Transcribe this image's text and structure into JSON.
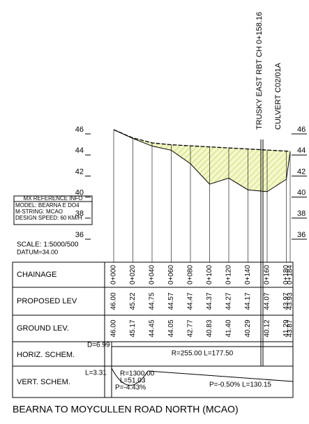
{
  "header": {
    "station_label": "TRUSKY EAST RBT CH 0+158.16",
    "culvert_label": "CULVERT C02/01A"
  },
  "axis": {
    "left": [
      "46",
      "44",
      "42",
      "40",
      "38",
      "36"
    ],
    "right": [
      "46",
      "44",
      "42",
      "40",
      "38",
      "36"
    ]
  },
  "reference": {
    "title": "MX REFERENCE INFO",
    "lines": [
      "MODEL: BEARNA E DO4",
      "M-STRING: MCAO",
      "DESIGN SPEED: 60 KM/H"
    ]
  },
  "scale": "SCALE: 1:5000/500",
  "datum": "DATUM=34.00",
  "table": {
    "row_labels": [
      "CHAINAGE",
      "PROPOSED LEV",
      "GROUND LEV.",
      "HORIZ. SCHEM.",
      "VERT. SCHEM."
    ],
    "chainage": [
      "0+000",
      "0+020",
      "0+040",
      "0+060",
      "0+080",
      "0+100",
      "0+120",
      "0+140",
      "0+160",
      "0+180",
      "0+184"
    ],
    "proposed": [
      "46.00",
      "45.22",
      "44.75",
      "44.57",
      "44.47",
      "44.37",
      "44.27",
      "44.17",
      "44.07",
      "43.97",
      "43.93"
    ],
    "ground": [
      "46.00",
      "45.17",
      "44.45",
      "44.05",
      "42.77",
      "40.83",
      "41.40",
      "40.29",
      "40.12",
      "41.29",
      "43.87"
    ]
  },
  "horiz": {
    "start": "D=6.99",
    "curve": "R=255.00 L=177.50"
  },
  "vert": {
    "start": "L=3.31",
    "radius": "R=1300.00",
    "length": "L=51.03",
    "grade1": "P=-4.43%",
    "grade2": "P=-0.50% L=130.15"
  },
  "title": "BEARNA TO MOYCULLEN ROAD NORTH (MCAO)"
}
